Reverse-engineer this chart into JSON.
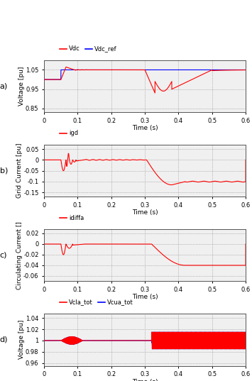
{
  "xlim": [
    0,
    0.6
  ],
  "time_xlabel": "Time (s)",
  "xticks": [
    0,
    0.1,
    0.2,
    0.3,
    0.4,
    0.5,
    0.6
  ],
  "xtick_labels": [
    "0",
    "0.1",
    "0.2",
    "0.3",
    "0.4",
    "0.5",
    "0.6"
  ],
  "plot_a": {
    "label": "a)",
    "ylabel": "Voltage [pu]",
    "ylim": [
      0.83,
      1.1
    ],
    "yticks": [
      0.85,
      0.95,
      1.05
    ],
    "ytick_labels": [
      "0.85",
      "0.95",
      "1.05"
    ],
    "legend": [
      "Vdc",
      "Vdc_ref"
    ],
    "line_colors": [
      "red",
      "blue"
    ]
  },
  "plot_b": {
    "label": "b)",
    "ylabel": "Grid Current [pu]",
    "ylim": [
      -0.17,
      0.07
    ],
    "yticks": [
      -0.15,
      -0.1,
      -0.05,
      0,
      0.05
    ],
    "ytick_labels": [
      "-0.15",
      "-0.1",
      "-0.05",
      "0",
      "0.05"
    ],
    "legend": [
      "igd"
    ],
    "line_colors": [
      "red"
    ]
  },
  "plot_c": {
    "label": "c)",
    "ylabel": "Circulating Current []",
    "ylim": [
      -0.07,
      0.028
    ],
    "yticks": [
      -0.06,
      -0.04,
      -0.02,
      0,
      0.02
    ],
    "ytick_labels": [
      "-0.06",
      "-0.04",
      "-0.02",
      "0",
      "0.02"
    ],
    "legend": [
      "idiffa"
    ],
    "line_colors": [
      "red"
    ]
  },
  "plot_d": {
    "label": "d)",
    "ylabel": "Voltage [pu]",
    "ylim": [
      0.955,
      1.048
    ],
    "yticks": [
      0.96,
      0.98,
      1.0,
      1.02,
      1.04
    ],
    "ytick_labels": [
      "0.96",
      "0.98",
      "1",
      "1.02",
      "1.04"
    ],
    "legend": [
      "Vcla_tot",
      "Vcua_tot"
    ],
    "line_colors": [
      "red",
      "blue"
    ]
  },
  "bg_color": "#f0f0f0",
  "grid_color": "#888888",
  "grid_style": ":",
  "line_width": 0.8,
  "legend_fontsize": 6.0,
  "tick_fontsize": 6.0,
  "label_fontsize": 6.5,
  "subplot_label_fontsize": 8
}
